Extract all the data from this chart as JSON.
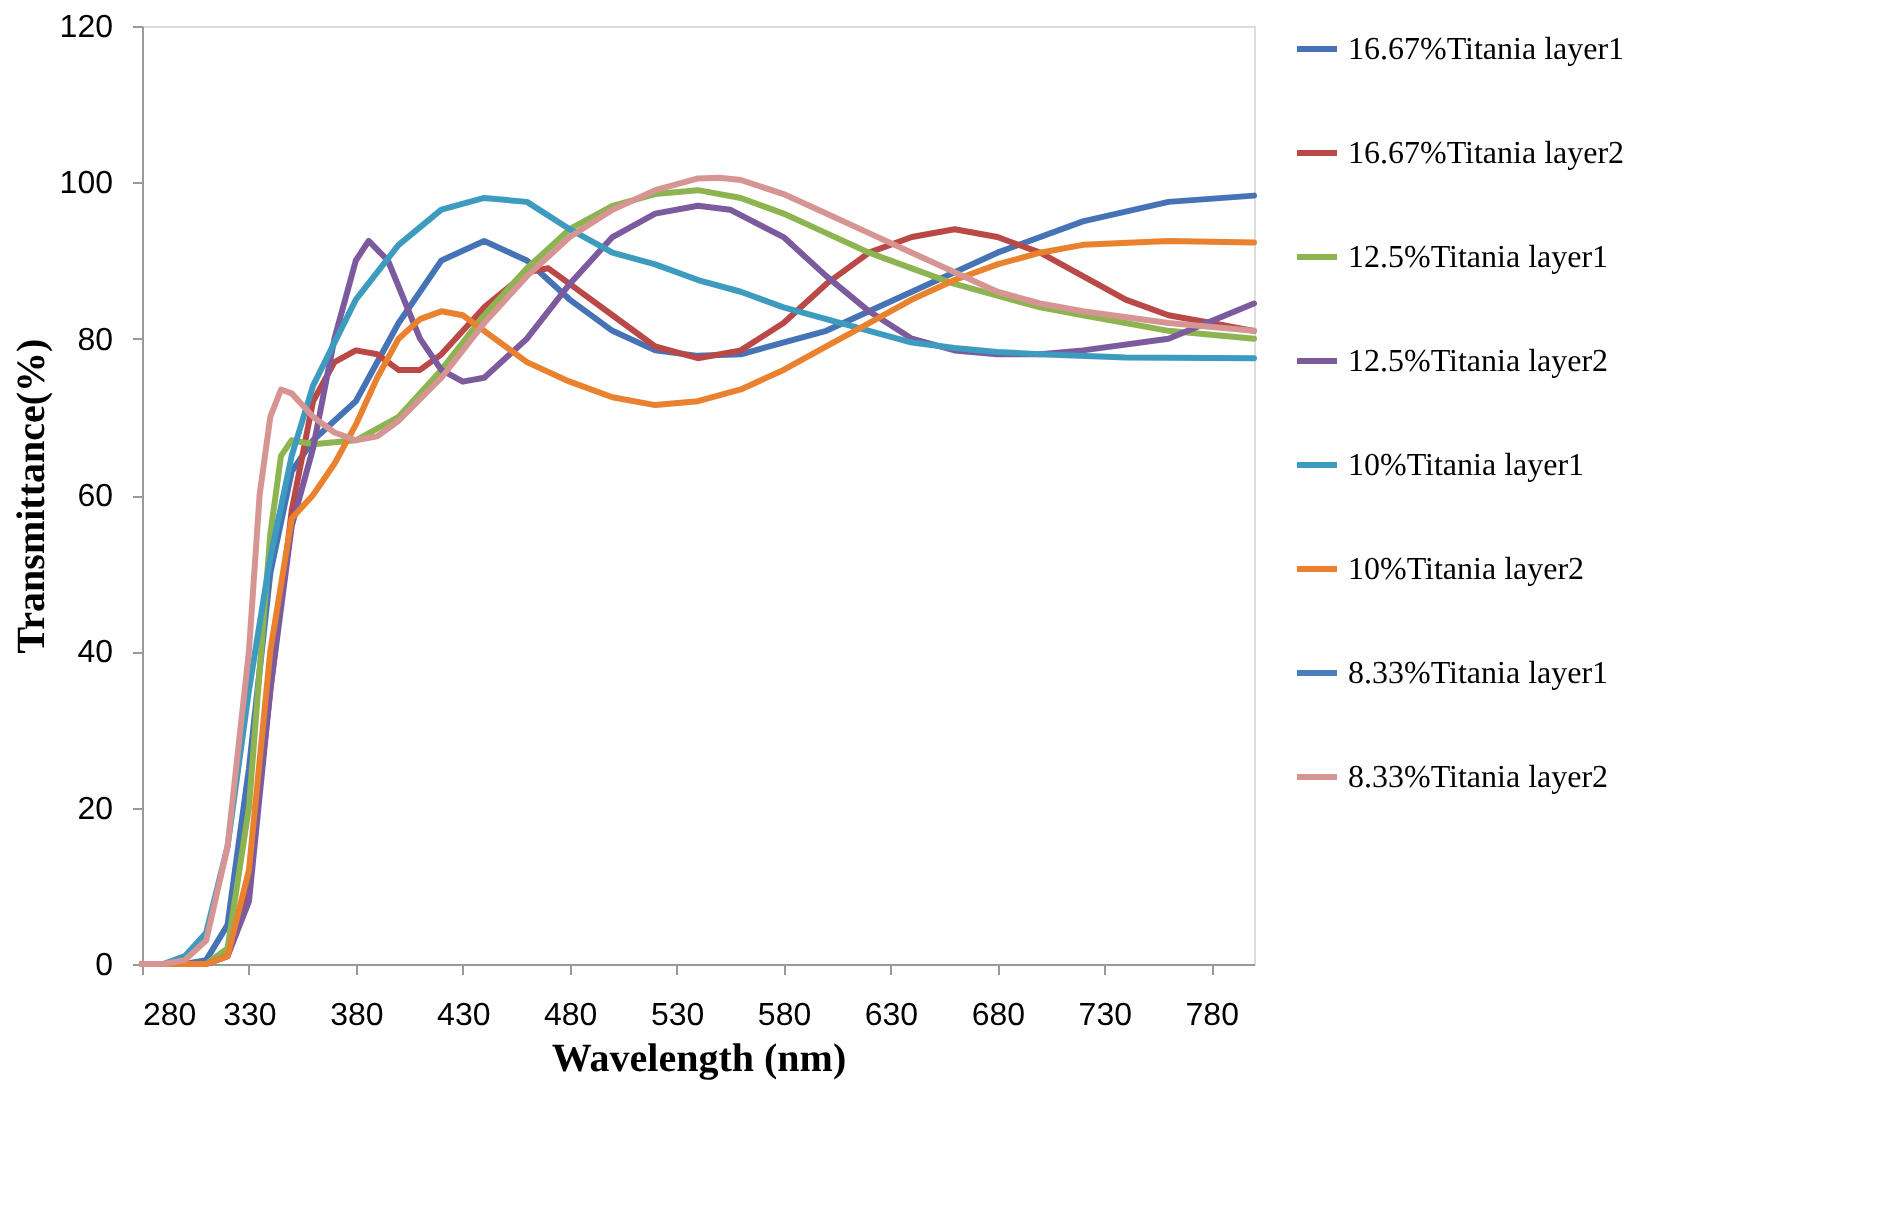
{
  "chart_data": {
    "type": "line",
    "xlabel": "Wavelength (nm)",
    "ylabel": "Transmittance(%)",
    "xlim": [
      280,
      800
    ],
    "ylim": [
      0,
      120
    ],
    "xticks": [
      280,
      330,
      380,
      430,
      480,
      530,
      580,
      630,
      680,
      730,
      780
    ],
    "yticks": [
      0,
      20,
      40,
      60,
      80,
      100,
      120
    ],
    "grid": false,
    "legend": "right",
    "line_style": "solid",
    "marker": "none",
    "series": [
      {
        "name": "16.67%Titania layer1",
        "color": "#4573b5",
        "x": [
          280,
          300,
          310,
          320,
          330,
          340,
          350,
          360,
          380,
          400,
          420,
          440,
          460,
          480,
          500,
          520,
          540,
          560,
          600,
          640,
          680,
          720,
          760,
          800
        ],
        "values": [
          0,
          0,
          0.5,
          5,
          25,
          50,
          63,
          67,
          72,
          82,
          90,
          92.5,
          90,
          85,
          81,
          78.5,
          77.8,
          78,
          81,
          86,
          91,
          95,
          97.5,
          98.3
        ]
      },
      {
        "name": "16.67%Titania layer2",
        "color": "#b94846",
        "x": [
          280,
          310,
          320,
          330,
          340,
          350,
          360,
          370,
          380,
          390,
          400,
          410,
          420,
          440,
          460,
          470,
          480,
          500,
          520,
          540,
          560,
          580,
          600,
          620,
          640,
          660,
          680,
          700,
          720,
          740,
          760,
          780,
          800
        ],
        "values": [
          0,
          0,
          1,
          10,
          35,
          58,
          72,
          77,
          78.5,
          78,
          76,
          76,
          78,
          84,
          88.5,
          89,
          87,
          83,
          79,
          77.5,
          78.5,
          82,
          87,
          91,
          93,
          94,
          93,
          91,
          88,
          85,
          83,
          82,
          81
        ]
      },
      {
        "name": "12.5%Titania layer1",
        "color": "#8db451",
        "x": [
          280,
          310,
          320,
          330,
          340,
          345,
          350,
          360,
          380,
          400,
          420,
          440,
          460,
          480,
          500,
          520,
          540,
          560,
          580,
          600,
          620,
          640,
          660,
          680,
          700,
          720,
          740,
          760,
          800
        ],
        "values": [
          0,
          0,
          2,
          20,
          55,
          65,
          67,
          66.5,
          67,
          70,
          76,
          83,
          89,
          94,
          97,
          98.5,
          99,
          98,
          96,
          93.5,
          91,
          89,
          87,
          85.5,
          84,
          83,
          82,
          81,
          80
        ]
      },
      {
        "name": "12.5%Titania layer2",
        "color": "#7b5a9d",
        "x": [
          280,
          310,
          320,
          330,
          340,
          350,
          360,
          370,
          380,
          386,
          395,
          410,
          420,
          430,
          440,
          460,
          480,
          500,
          520,
          540,
          555,
          580,
          600,
          620,
          640,
          660,
          680,
          700,
          720,
          760,
          800
        ],
        "values": [
          0,
          0,
          1,
          8,
          35,
          56,
          66,
          80,
          90,
          92.5,
          90,
          80,
          76,
          74.5,
          75,
          80,
          87,
          93,
          96,
          97,
          96.5,
          93,
          88,
          83.5,
          80,
          78.5,
          78,
          78,
          78.5,
          80,
          84.5
        ]
      },
      {
        "name": "10%Titania layer1",
        "color": "#3d9bc0",
        "x": [
          280,
          290,
          300,
          310,
          320,
          330,
          340,
          350,
          360,
          380,
          400,
          420,
          440,
          460,
          480,
          500,
          520,
          540,
          560,
          580,
          600,
          620,
          640,
          660,
          680,
          700,
          740,
          800
        ],
        "values": [
          0,
          0,
          1,
          4,
          15,
          35,
          52,
          65,
          74,
          85,
          92,
          96.5,
          98,
          97.5,
          94,
          91,
          89.5,
          87.5,
          86,
          84,
          82.5,
          81,
          79.5,
          78.8,
          78.3,
          78,
          77.6,
          77.5
        ]
      },
      {
        "name": "10%Titania layer2",
        "color": "#e9812f",
        "x": [
          280,
          310,
          320,
          330,
          340,
          350,
          360,
          370,
          380,
          390,
          400,
          410,
          420,
          430,
          440,
          460,
          480,
          500,
          520,
          540,
          560,
          580,
          600,
          620,
          640,
          660,
          680,
          700,
          720,
          760,
          800
        ],
        "values": [
          0,
          0,
          1,
          12,
          40,
          57,
          60,
          64,
          69,
          75,
          80,
          82.5,
          83.5,
          83,
          81,
          77,
          74.5,
          72.5,
          71.5,
          72,
          73.5,
          76,
          79,
          82,
          85,
          87.5,
          89.5,
          91,
          92,
          92.5,
          92.3
        ]
      },
      {
        "name": "8.33%Titania layer1",
        "color": "#4a7ebb"
      },
      {
        "name": "8.33%Titania layer2",
        "color": "#d69592",
        "x": [
          280,
          290,
          300,
          310,
          320,
          330,
          335,
          340,
          345,
          350,
          360,
          370,
          380,
          390,
          400,
          420,
          440,
          460,
          480,
          500,
          520,
          540,
          550,
          560,
          580,
          600,
          620,
          640,
          660,
          680,
          700,
          720,
          760,
          800
        ],
        "values": [
          0,
          0,
          0.5,
          3,
          15,
          40,
          60,
          70,
          73.5,
          73,
          70,
          68,
          67,
          67.5,
          69.5,
          75,
          82,
          88,
          93,
          96.5,
          99,
          100.5,
          100.6,
          100.3,
          98.5,
          96,
          93.5,
          91,
          88.5,
          86,
          84.5,
          83.5,
          82,
          81
        ]
      }
    ]
  }
}
